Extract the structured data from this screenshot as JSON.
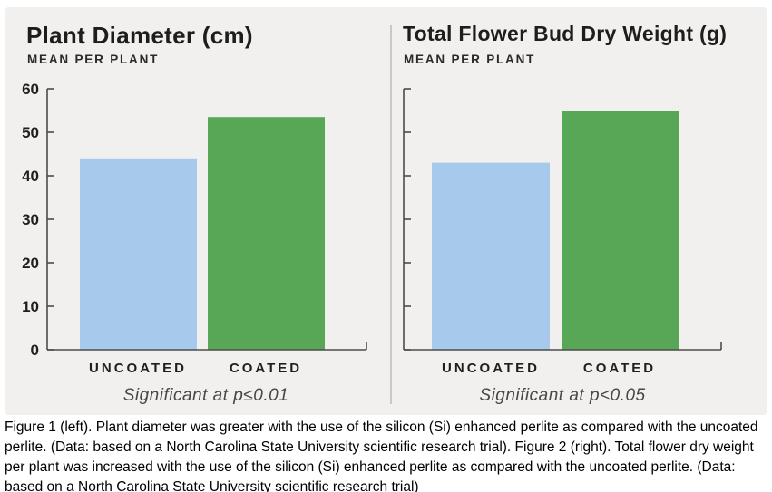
{
  "figure": {
    "note_left": "Significant at p≤0.01",
    "note_right": "Significant at p<0.05"
  },
  "chart_data": [
    {
      "type": "bar",
      "title": "Plant Diameter (cm)",
      "subtitle": "MEAN PER PLANT",
      "categories": [
        "UNCOATED",
        "COATED"
      ],
      "values": [
        44,
        53.5
      ],
      "bar_colors": [
        "#a6c9ec",
        "#57a757"
      ],
      "ylim": [
        0,
        60
      ],
      "ytick_interval": 10,
      "ytick_labels_visible": true,
      "grid": false,
      "legend": "none",
      "annotation": "Significant at p≤0.01"
    },
    {
      "type": "bar",
      "title": "Total Flower Bud Dry Weight (g)",
      "subtitle": "MEAN PER PLANT",
      "categories": [
        "UNCOATED",
        "COATED"
      ],
      "values": [
        43,
        55
      ],
      "bar_colors": [
        "#a6c9ec",
        "#57a757"
      ],
      "ylim": [
        0,
        60
      ],
      "ytick_interval": 10,
      "ytick_labels_visible": false,
      "grid": false,
      "legend": "none",
      "annotation": "Significant at p<0.05"
    }
  ],
  "style": {
    "axis_color": "#4c4c4c",
    "panel_background": "#f1f0ee",
    "tick_label_color": "#1f1f1f"
  },
  "caption": "Figure 1 (left). Plant diameter was greater with the use of the silicon (Si) enhanced perlite as compared with the uncoated perlite. (Data: based on a North Carolina State University scientific research trial). Figure 2 (right). Total flower dry weight per plant was increased with the use of the silicon (Si) enhanced perlite as compared with the uncoated perlite. (Data: based on a North Carolina State University scientific research trial)"
}
